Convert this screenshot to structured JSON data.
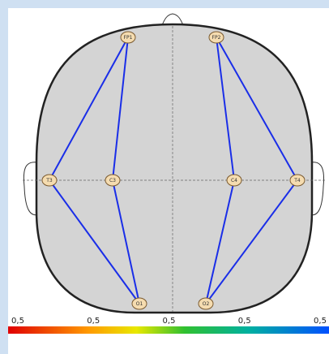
{
  "electrodes": [
    {
      "label": "FP1"
    },
    {
      "label": "FP2"
    },
    {
      "label": "T3"
    },
    {
      "label": "C3"
    },
    {
      "label": "C4"
    },
    {
      "label": "T4"
    },
    {
      "label": "O1"
    },
    {
      "label": "O2"
    }
  ],
  "scale": {
    "labels": [
      "0,5",
      "0,5",
      "0,5",
      "0,5",
      "0,5"
    ]
  }
}
